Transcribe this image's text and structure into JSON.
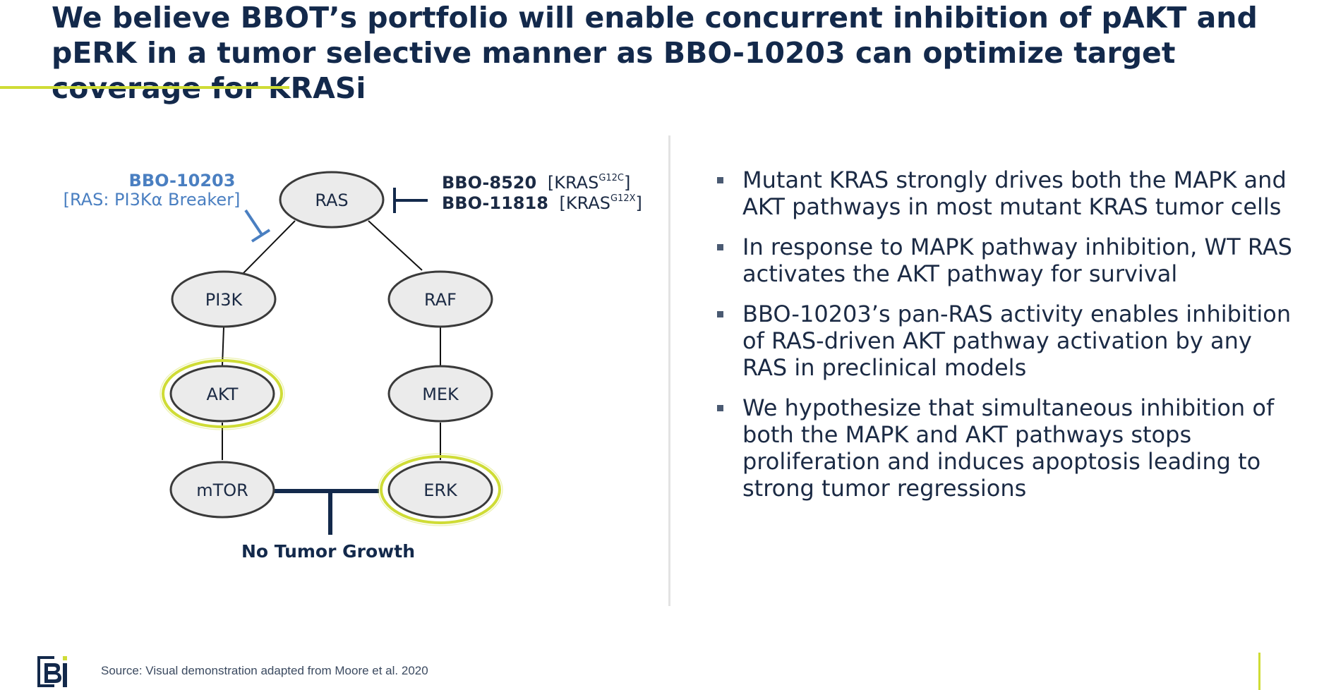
{
  "title": "We believe BBOT’s portfolio will enable concurrent inhibition of pAKT and pERK in a tumor selective manner as BBO-10203 can optimize target coverage for KRASi",
  "colors": {
    "navy": "#13294b",
    "accent_lime": "#cfdc36",
    "drug_blue": "#4a7fc1",
    "node_fill": "#ebebeb",
    "divider": "#e3e3e3"
  },
  "diagram": {
    "nodes": {
      "ras": "RAS",
      "pi3k": "PI3K",
      "raf": "RAF",
      "akt": "AKT",
      "mek": "MEK",
      "mtor": "mTOR",
      "erk": "ERK"
    },
    "drug_left": {
      "name": "BBO-10203",
      "desc": "[RAS: PI3Kα Breaker]"
    },
    "drug_right": [
      {
        "name": "BBO-8520",
        "target_open": "[KRAS",
        "superscript": "G12C",
        "target_close": "]"
      },
      {
        "name": "BBO-11818",
        "target_open": "[KRAS",
        "superscript": "G12X",
        "target_close": "]"
      }
    ],
    "outcome": "No Tumor Growth",
    "highlighted_nodes": [
      "AKT",
      "ERK"
    ]
  },
  "bullets": [
    "Mutant KRAS strongly drives both the MAPK and AKT pathways in most mutant KRAS tumor cells",
    "In response to MAPK pathway inhibition, WT RAS activates the AKT pathway for survival",
    "BBO-10203’s pan-RAS activity enables inhibition of RAS-driven AKT pathway activation by any RAS in preclinical models",
    "We hypothesize that simultaneous inhibition of both the MAPK and AKT pathways stops proliferation and induces apoptosis leading to strong tumor regressions"
  ],
  "source": "Source: Visual demonstration adapted from Moore et al. 2020",
  "logo_text": "BBOT logo"
}
